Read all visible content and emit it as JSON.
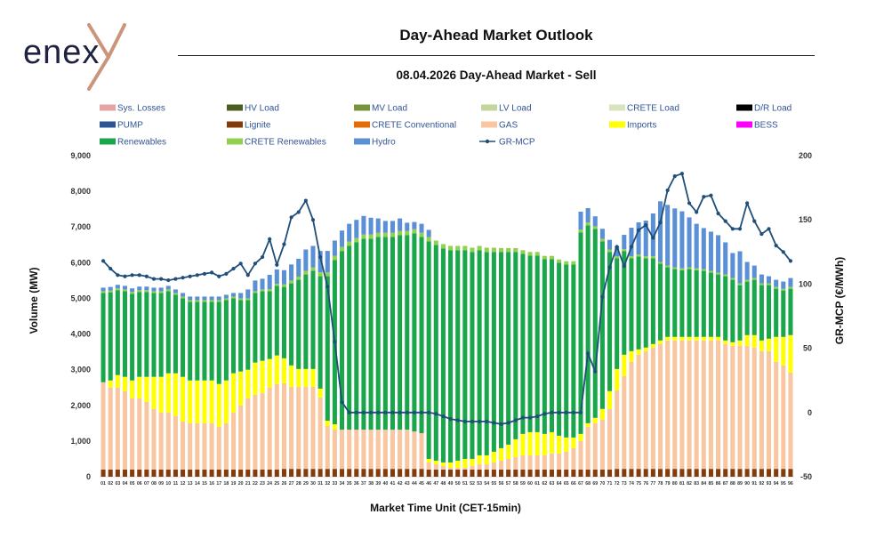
{
  "header": {
    "logo_text": "enex",
    "title": "Day-Ahead Market Outlook",
    "subtitle": "08.04.2026  Day-Ahead Market - Sell"
  },
  "colors": {
    "sys_losses": "#e6a3a3",
    "hv_load": "#4a5e1f",
    "mv_load": "#77933c",
    "lv_load": "#c3d69b",
    "crete_load": "#d7e4bd",
    "dr_load": "#000000",
    "pump": "#2f5496",
    "lignite": "#843c0c",
    "crete_conv": "#e36c09",
    "gas": "#f8c6a0",
    "imports": "#ffff00",
    "bess": "#ff00ff",
    "renewables": "#1aa64a",
    "crete_renewables": "#92d050",
    "hydro": "#5b8fd6",
    "mcp": "#1f4e79"
  },
  "chart_data": {
    "type": "stacked-bar+line",
    "title": "Day-Ahead Market Outlook",
    "subtitle": "08.04.2026  Day-Ahead Market - Sell",
    "xlabel": "Market Time Unit (CET-15min)",
    "ylabel": "Volume (MW)",
    "y2label": "GR-MCP (€/MWh)",
    "ylim": [
      0,
      9000
    ],
    "y2lim": [
      -50,
      200
    ],
    "yticks": [
      "0",
      "1,000",
      "2,000",
      "3,000",
      "4,000",
      "5,000",
      "6,000",
      "7,000",
      "8,000",
      "9,000"
    ],
    "y2ticks": [
      "-50",
      "0",
      "50",
      "100",
      "150",
      "200"
    ],
    "legend": [
      {
        "key": "sys_losses",
        "label": "Sys. Losses",
        "kind": "box"
      },
      {
        "key": "hv_load",
        "label": "HV Load",
        "kind": "box"
      },
      {
        "key": "mv_load",
        "label": "MV Load",
        "kind": "box"
      },
      {
        "key": "lv_load",
        "label": "LV Load",
        "kind": "box"
      },
      {
        "key": "crete_load",
        "label": "CRETE Load",
        "kind": "box"
      },
      {
        "key": "dr_load",
        "label": "D/R Load",
        "kind": "box"
      },
      {
        "key": "pump",
        "label": "PUMP",
        "kind": "box"
      },
      {
        "key": "lignite",
        "label": "Lignite",
        "kind": "box"
      },
      {
        "key": "crete_conv",
        "label": "CRETE Conventional",
        "kind": "box"
      },
      {
        "key": "gas",
        "label": "GAS",
        "kind": "box"
      },
      {
        "key": "imports",
        "label": "Imports",
        "kind": "box"
      },
      {
        "key": "bess",
        "label": "BESS",
        "kind": "box"
      },
      {
        "key": "renewables",
        "label": "Renewables",
        "kind": "box"
      },
      {
        "key": "crete_renewables",
        "label": "CRETE Renewables",
        "kind": "box"
      },
      {
        "key": "hydro",
        "label": "Hydro",
        "kind": "box"
      },
      {
        "key": "mcp",
        "label": "GR-MCP",
        "kind": "line"
      }
    ],
    "x": [
      "01",
      "02",
      "03",
      "04",
      "05",
      "06",
      "07",
      "08",
      "09",
      "10",
      "11",
      "12",
      "13",
      "14",
      "15",
      "16",
      "17",
      "18",
      "19",
      "20",
      "21",
      "22",
      "23",
      "24",
      "25",
      "26",
      "27",
      "28",
      "29",
      "30",
      "31",
      "32",
      "33",
      "34",
      "35",
      "36",
      "37",
      "38",
      "39",
      "40",
      "41",
      "42",
      "43",
      "44",
      "45",
      "46",
      "47",
      "48",
      "49",
      "50",
      "51",
      "52",
      "53",
      "54",
      "55",
      "56",
      "57",
      "58",
      "59",
      "60",
      "61",
      "62",
      "63",
      "64",
      "65",
      "66",
      "67",
      "68",
      "69",
      "70",
      "71",
      "72",
      "73",
      "74",
      "75",
      "76",
      "77",
      "78",
      "79",
      "80",
      "81",
      "82",
      "83",
      "84",
      "85",
      "86",
      "87",
      "88",
      "89",
      "90",
      "91",
      "92",
      "93",
      "94",
      "95",
      "96"
    ],
    "series": [
      {
        "key": "lignite",
        "name": "Lignite",
        "values": [
          200,
          200,
          200,
          200,
          200,
          200,
          200,
          200,
          200,
          200,
          200,
          200,
          200,
          200,
          200,
          200,
          200,
          200,
          200,
          200,
          200,
          200,
          200,
          200,
          200,
          220,
          220,
          220,
          220,
          220,
          220,
          220,
          220,
          220,
          220,
          220,
          220,
          220,
          220,
          220,
          220,
          220,
          220,
          220,
          220,
          200,
          200,
          200,
          200,
          200,
          200,
          200,
          200,
          200,
          200,
          200,
          200,
          200,
          200,
          200,
          200,
          200,
          200,
          200,
          200,
          200,
          200,
          200,
          200,
          200,
          200,
          220,
          220,
          220,
          220,
          220,
          220,
          220,
          220,
          220,
          220,
          220,
          220,
          220,
          220,
          220,
          220,
          220,
          220,
          220,
          220,
          220,
          220,
          220,
          220,
          220
        ]
      },
      {
        "key": "gas",
        "name": "GAS",
        "values": [
          2450,
          2300,
          2300,
          2200,
          2000,
          2000,
          1900,
          1700,
          1600,
          1600,
          1500,
          1350,
          1300,
          1300,
          1300,
          1300,
          1200,
          1300,
          1600,
          1800,
          2000,
          2100,
          2150,
          2300,
          2400,
          2400,
          2300,
          2300,
          2300,
          2300,
          2000,
          1200,
          1100,
          1100,
          1100,
          1100,
          1100,
          1100,
          1100,
          1100,
          1100,
          1100,
          1100,
          1050,
          1000,
          200,
          150,
          100,
          50,
          50,
          50,
          100,
          150,
          150,
          200,
          250,
          300,
          350,
          400,
          400,
          400,
          400,
          450,
          450,
          500,
          600,
          800,
          1200,
          1300,
          1400,
          1700,
          2200,
          2600,
          3000,
          3200,
          3300,
          3400,
          3500,
          3600,
          3600,
          3600,
          3600,
          3600,
          3600,
          3600,
          3600,
          3500,
          3450,
          3450,
          3450,
          3400,
          3300,
          3300,
          3000,
          2900,
          2700
        ]
      },
      {
        "key": "imports",
        "name": "Imports",
        "values": [
          0,
          200,
          350,
          400,
          500,
          600,
          700,
          900,
          1000,
          1100,
          1200,
          1250,
          1200,
          1200,
          1200,
          1200,
          1200,
          1200,
          1100,
          950,
          800,
          900,
          900,
          800,
          800,
          700,
          600,
          500,
          500,
          500,
          250,
          150,
          150,
          0,
          0,
          0,
          0,
          0,
          0,
          0,
          0,
          0,
          0,
          0,
          0,
          100,
          100,
          100,
          150,
          200,
          250,
          200,
          250,
          250,
          300,
          350,
          400,
          500,
          600,
          650,
          650,
          600,
          600,
          500,
          400,
          300,
          200,
          100,
          150,
          300,
          500,
          600,
          600,
          300,
          150,
          100,
          100,
          100,
          100,
          100,
          100,
          100,
          100,
          100,
          100,
          100,
          100,
          100,
          150,
          300,
          350,
          300,
          350,
          700,
          800,
          1050
        ]
      },
      {
        "key": "renewables",
        "name": "Renewables",
        "values": [
          2500,
          2470,
          2380,
          2400,
          2430,
          2380,
          2380,
          2350,
          2350,
          2300,
          2200,
          2200,
          2200,
          2200,
          2200,
          2200,
          2300,
          2250,
          2100,
          2000,
          1950,
          1950,
          1950,
          1900,
          1950,
          2000,
          2300,
          2500,
          2650,
          2750,
          3150,
          4050,
          4600,
          5000,
          5150,
          5250,
          5350,
          5350,
          5400,
          5400,
          5400,
          5450,
          5450,
          5550,
          5500,
          6100,
          6050,
          6000,
          5950,
          5900,
          5850,
          5800,
          5750,
          5700,
          5600,
          5500,
          5400,
          5250,
          5050,
          4950,
          4950,
          4900,
          4850,
          4850,
          4850,
          4850,
          5650,
          5550,
          5300,
          4700,
          3900,
          3100,
          2900,
          2600,
          2600,
          2500,
          2400,
          2150,
          1950,
          1900,
          1870,
          1900,
          1870,
          1850,
          1800,
          1750,
          1800,
          1750,
          1550,
          1500,
          1550,
          1550,
          1500,
          1350,
          1300,
          1300
        ]
      },
      {
        "key": "crete_renewables",
        "name": "CRETE Renewables",
        "values": [
          50,
          50,
          50,
          50,
          50,
          50,
          50,
          50,
          50,
          50,
          50,
          50,
          50,
          50,
          50,
          50,
          50,
          50,
          50,
          50,
          50,
          50,
          50,
          60,
          60,
          70,
          80,
          90,
          100,
          100,
          110,
          110,
          120,
          120,
          120,
          120,
          120,
          120,
          120,
          120,
          120,
          120,
          120,
          120,
          120,
          120,
          120,
          120,
          120,
          120,
          120,
          120,
          120,
          120,
          120,
          110,
          110,
          110,
          100,
          100,
          100,
          90,
          90,
          90,
          90,
          90,
          80,
          80,
          70,
          70,
          70,
          60,
          60,
          60,
          60,
          60,
          60,
          50,
          50,
          50,
          50,
          50,
          50,
          50,
          50,
          50,
          50,
          50,
          50,
          50,
          50,
          50,
          50,
          50,
          50,
          50
        ]
      },
      {
        "key": "hydro",
        "name": "Hydro",
        "values": [
          100,
          100,
          100,
          100,
          100,
          100,
          100,
          100,
          100,
          100,
          100,
          100,
          100,
          100,
          100,
          100,
          100,
          100,
          100,
          150,
          250,
          300,
          300,
          400,
          400,
          400,
          450,
          500,
          600,
          600,
          600,
          600,
          430,
          460,
          500,
          510,
          520,
          470,
          400,
          330,
          330,
          350,
          230,
          200,
          250,
          200,
          0,
          0,
          0,
          0,
          0,
          0,
          0,
          0,
          0,
          0,
          0,
          0,
          0,
          0,
          0,
          0,
          0,
          0,
          0,
          0,
          500,
          400,
          280,
          280,
          270,
          280,
          400,
          800,
          900,
          1000,
          1200,
          1700,
          1700,
          1650,
          1600,
          1400,
          1250,
          1150,
          1100,
          1050,
          900,
          700,
          900,
          500,
          350,
          250,
          200,
          200,
          200,
          250
        ]
      }
    ],
    "mcp": [
      118,
      112,
      107,
      106,
      107,
      107,
      106,
      104,
      104,
      103,
      104,
      105,
      106,
      107,
      108,
      109,
      106,
      108,
      112,
      116,
      107,
      116,
      121,
      135,
      115,
      131,
      152,
      156,
      165,
      150,
      121,
      98,
      55,
      8,
      0,
      0,
      0,
      0,
      0,
      0,
      0,
      0,
      0,
      0,
      0,
      0,
      -1,
      -3,
      -5,
      -6,
      -7,
      -7,
      -7,
      -7,
      -8,
      -9,
      -8,
      -6,
      -4,
      -4,
      -3,
      -1,
      0,
      0,
      0,
      0,
      0,
      46,
      32,
      90,
      113,
      129,
      114,
      129,
      142,
      146,
      136,
      148,
      173,
      184,
      186,
      163,
      156,
      168,
      169,
      155,
      149,
      143,
      143,
      163,
      149,
      139,
      143,
      130,
      125,
      118
    ]
  },
  "axes": {
    "y_title": "Volume (MW)",
    "y2_title": "GR-MCP (€/MWh)",
    "x_title": "Market Time Unit (CET-15min)"
  }
}
